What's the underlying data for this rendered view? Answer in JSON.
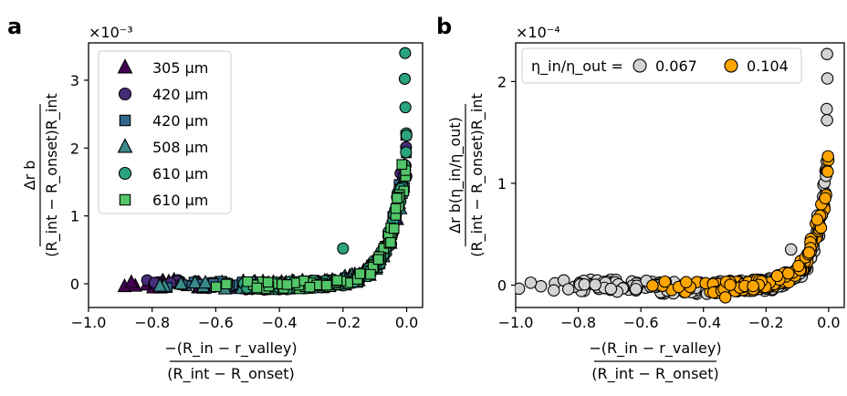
{
  "figure": {
    "panel_a_letter": "a",
    "panel_b_letter": "b"
  },
  "colors": {
    "c305": "#440154",
    "c420a": "#472c7a",
    "c420b": "#31688e",
    "c508": "#3b8b8c",
    "c610a": "#2ca37f",
    "c610b": "#52c569",
    "c067": "#d3d3d3",
    "c104": "#ffa500",
    "edge": "#000000"
  },
  "chart_data": [
    {
      "type": "scatter",
      "panel": "a",
      "exponent_label": "×10⁻³",
      "xlabel_numerator": "−(R_in − r_valley)",
      "xlabel_denominator": "(R_int − R_onset)",
      "ylabel_numerator": "Δr b",
      "ylabel_denominator": "(R_int − R_onset)R_int",
      "xlim": [
        -1.0,
        0.05
      ],
      "ylim": [
        -0.35,
        3.55
      ],
      "xticks": [
        -1.0,
        -0.8,
        -0.6,
        -0.4,
        -0.2,
        0.0
      ],
      "xtick_labels": [
        "−1.0",
        "−0.8",
        "−0.6",
        "−0.4",
        "−0.2",
        "0.0"
      ],
      "yticks": [
        0,
        1,
        2,
        3
      ],
      "ytick_labels": [
        "0",
        "1",
        "2",
        "3"
      ],
      "legend_position": "top-left",
      "series": [
        {
          "name": "305 μm",
          "marker": "triangle",
          "color_key": "c305",
          "x_range": [
            -1.0,
            -0.02
          ],
          "k": 0.05,
          "n": 70,
          "seed": 11
        },
        {
          "name": "420 μm",
          "marker": "circle",
          "color_key": "c420a",
          "x_range": [
            -0.95,
            0.0
          ],
          "k": 0.05,
          "n": 90,
          "seed": 23
        },
        {
          "name": "420 μm",
          "marker": "square",
          "color_key": "c420b",
          "x_range": [
            -0.9,
            0.0
          ],
          "k": 0.05,
          "n": 80,
          "seed": 37
        },
        {
          "name": "508 μm",
          "marker": "triangle",
          "color_key": "c508",
          "x_range": [
            -0.85,
            0.0
          ],
          "k": 0.05,
          "n": 80,
          "seed": 41
        },
        {
          "name": "610 μm",
          "marker": "circle",
          "color_key": "c610a",
          "x_range": [
            -0.55,
            0.0
          ],
          "k": 0.05,
          "n": 110,
          "seed": 53
        },
        {
          "name": "610 μm",
          "marker": "square",
          "color_key": "c610b",
          "x_range": [
            -0.6,
            0.0
          ],
          "k": 0.05,
          "n": 70,
          "seed": 67
        }
      ],
      "extra_points": [
        {
          "x": -0.005,
          "y": 3.4,
          "color_key": "c610a",
          "marker": "circle"
        },
        {
          "x": -0.006,
          "y": 3.02,
          "color_key": "c610a",
          "marker": "circle"
        },
        {
          "x": -0.004,
          "y": 2.6,
          "color_key": "c610a",
          "marker": "circle"
        },
        {
          "x": -0.2,
          "y": 0.52,
          "color_key": "c610a",
          "marker": "circle"
        }
      ]
    },
    {
      "type": "scatter",
      "panel": "b",
      "exponent_label": "×10⁻⁴",
      "xlabel_numerator": "−(R_in − r_valley)",
      "xlabel_denominator": "(R_int − R_onset)",
      "ylabel_numerator": "Δr b(η_in/η_out)",
      "ylabel_denominator": "(R_int − R_onset)R_int",
      "xlim": [
        -1.0,
        0.05
      ],
      "ylim": [
        -0.22,
        2.38
      ],
      "xticks": [
        -1.0,
        -0.8,
        -0.6,
        -0.4,
        -0.2,
        0.0
      ],
      "xtick_labels": [
        "−1.0",
        "−0.8",
        "−0.6",
        "−0.4",
        "−0.2",
        "0.0"
      ],
      "yticks": [
        0,
        1,
        2
      ],
      "ytick_labels": [
        "0",
        "1",
        "2"
      ],
      "legend_title": "η_in/η_out =",
      "legend_position": "top",
      "series": [
        {
          "name": "0.067",
          "marker": "circle",
          "color_key": "c067",
          "x_range": [
            -1.0,
            0.0
          ],
          "k": 0.04,
          "amp": 1.3,
          "n": 260,
          "seed": 71
        },
        {
          "name": "0.104",
          "marker": "circle",
          "color_key": "c104",
          "x_range": [
            -0.6,
            0.0
          ],
          "k": 0.05,
          "amp": 1.2,
          "n": 150,
          "seed": 89
        }
      ],
      "extra_points": [
        {
          "x": -0.005,
          "y": 2.27,
          "color_key": "c067",
          "marker": "circle"
        },
        {
          "x": -0.004,
          "y": 2.03,
          "color_key": "c067",
          "marker": "circle"
        },
        {
          "x": -0.006,
          "y": 1.73,
          "color_key": "c067",
          "marker": "circle"
        },
        {
          "x": -0.005,
          "y": 1.62,
          "color_key": "c067",
          "marker": "circle"
        },
        {
          "x": -0.12,
          "y": 0.35,
          "color_key": "c067",
          "marker": "circle"
        },
        {
          "x": -0.33,
          "y": -0.12,
          "color_key": "c104",
          "marker": "circle"
        }
      ]
    }
  ]
}
